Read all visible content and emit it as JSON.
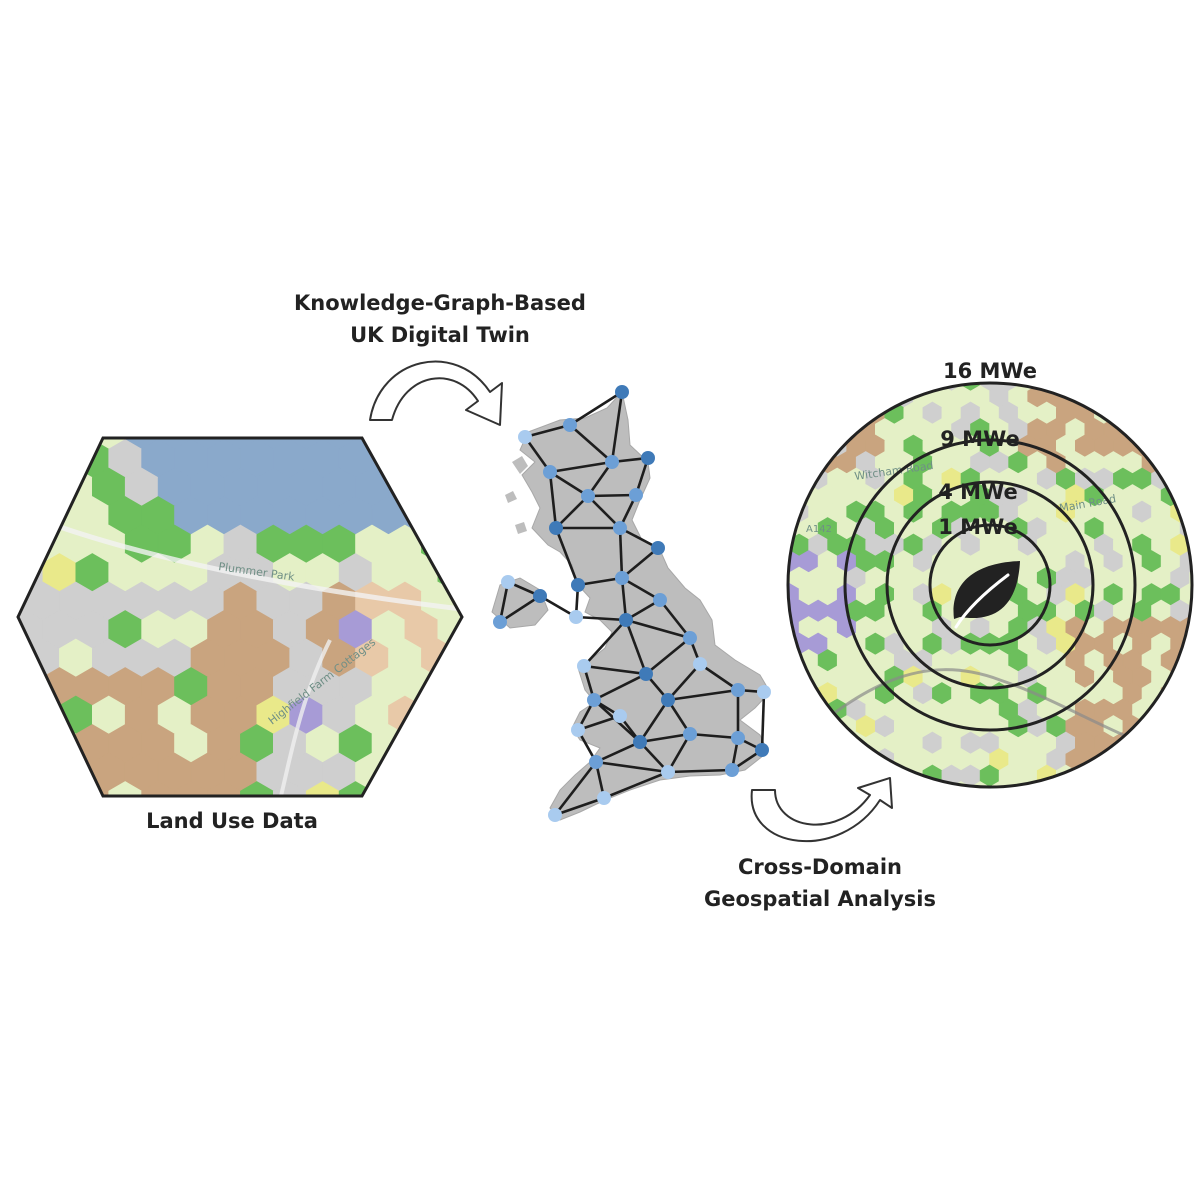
{
  "labels": {
    "kg_line1": "Knowledge-Graph-Based",
    "kg_line2": "UK Digital Twin",
    "land_use": "Land Use Data",
    "cross_line1": "Cross-Domain",
    "cross_line2": "Geospatial Analysis"
  },
  "map_labels": {
    "park": "Plummer Park",
    "cottages": "Highfield Farm Cottages",
    "road1": "Witcham Road",
    "road2": "Main Road",
    "road_code": "A142"
  },
  "rings": [
    {
      "label": "16 MWe"
    },
    {
      "label": "9 MWe"
    },
    {
      "label": "4 MWe"
    },
    {
      "label": "1 MWe"
    }
  ],
  "icons": {
    "center": "leaf-icon",
    "arrow_top": "curved-arrow-right-icon",
    "arrow_bottom": "curved-arrow-up-icon"
  },
  "colors": {
    "water": "#8aa9cb",
    "grassland": "#e4f0c6",
    "forest": "#6cbf5c",
    "urban": "#cfcfcf",
    "farmland": "#c9a47f",
    "purple": "#a79bd6",
    "yellow": "#e9e98a",
    "node_dark": "#3f7ab8",
    "node_mid": "#6c9fd6",
    "node_light": "#a9cbef"
  }
}
